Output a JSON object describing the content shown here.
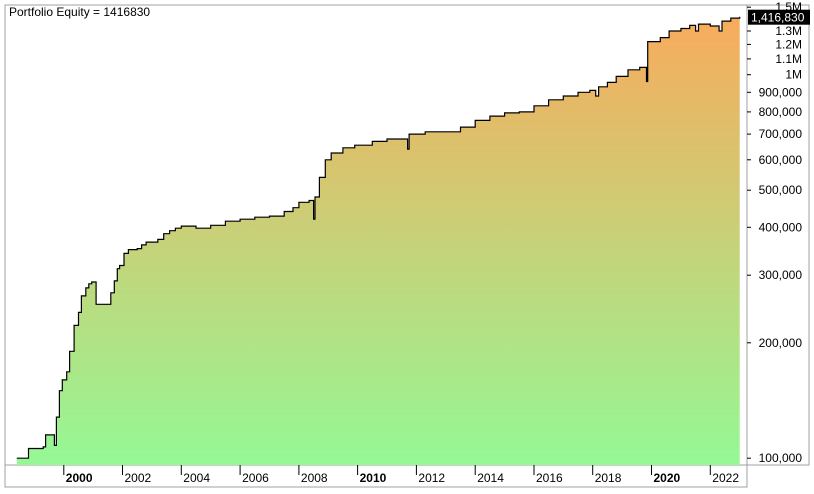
{
  "legend": {
    "text": "Portfolio Equity = 1416830"
  },
  "last_value_label": "1,416,830",
  "chart_data": {
    "type": "area",
    "title": "",
    "series": [
      {
        "name": "Portfolio Equity",
        "points": [
          [
            1998.4,
            100000
          ],
          [
            1998.8,
            106000
          ],
          [
            1999.3,
            107000
          ],
          [
            1999.38,
            115000
          ],
          [
            1999.6,
            115000
          ],
          [
            1999.68,
            108000
          ],
          [
            1999.75,
            128000
          ],
          [
            1999.85,
            150000
          ],
          [
            1999.95,
            160000
          ],
          [
            2000.1,
            168000
          ],
          [
            2000.2,
            190000
          ],
          [
            2000.35,
            222000
          ],
          [
            2000.5,
            240000
          ],
          [
            2000.6,
            265000
          ],
          [
            2000.75,
            278000
          ],
          [
            2000.85,
            285000
          ],
          [
            2000.95,
            288000
          ],
          [
            2001.1,
            252000
          ],
          [
            2001.5,
            252000
          ],
          [
            2001.6,
            270000
          ],
          [
            2001.72,
            290000
          ],
          [
            2001.82,
            312000
          ],
          [
            2001.9,
            318000
          ],
          [
            2002.05,
            342000
          ],
          [
            2002.2,
            350000
          ],
          [
            2002.5,
            352000
          ],
          [
            2002.65,
            360000
          ],
          [
            2002.8,
            366000
          ],
          [
            2003.2,
            372000
          ],
          [
            2003.4,
            385000
          ],
          [
            2003.6,
            392000
          ],
          [
            2003.8,
            398000
          ],
          [
            2004.0,
            403000
          ],
          [
            2004.5,
            398000
          ],
          [
            2005.0,
            405000
          ],
          [
            2005.5,
            415000
          ],
          [
            2006.0,
            420000
          ],
          [
            2006.5,
            425000
          ],
          [
            2007.0,
            428000
          ],
          [
            2007.5,
            440000
          ],
          [
            2007.8,
            450000
          ],
          [
            2008.0,
            465000
          ],
          [
            2008.35,
            470000
          ],
          [
            2008.5,
            420000
          ],
          [
            2008.55,
            480000
          ],
          [
            2008.7,
            540000
          ],
          [
            2008.9,
            600000
          ],
          [
            2009.1,
            625000
          ],
          [
            2009.5,
            645000
          ],
          [
            2009.9,
            655000
          ],
          [
            2010.5,
            670000
          ],
          [
            2011.0,
            680000
          ],
          [
            2011.5,
            680000
          ],
          [
            2011.7,
            640000
          ],
          [
            2011.75,
            700000
          ],
          [
            2012.3,
            710000
          ],
          [
            2012.8,
            710000
          ],
          [
            2013.5,
            730000
          ],
          [
            2014.0,
            760000
          ],
          [
            2014.5,
            780000
          ],
          [
            2015.0,
            795000
          ],
          [
            2015.5,
            800000
          ],
          [
            2016.0,
            830000
          ],
          [
            2016.5,
            860000
          ],
          [
            2017.0,
            880000
          ],
          [
            2017.5,
            900000
          ],
          [
            2017.9,
            910000
          ],
          [
            2018.1,
            880000
          ],
          [
            2018.2,
            930000
          ],
          [
            2018.5,
            955000
          ],
          [
            2018.8,
            990000
          ],
          [
            2019.2,
            1030000
          ],
          [
            2019.6,
            1045000
          ],
          [
            2019.8,
            1045000
          ],
          [
            2019.83,
            960000
          ],
          [
            2019.87,
            1220000
          ],
          [
            2020.3,
            1250000
          ],
          [
            2020.6,
            1300000
          ],
          [
            2021.0,
            1320000
          ],
          [
            2021.3,
            1345000
          ],
          [
            2021.5,
            1300000
          ],
          [
            2021.6,
            1355000
          ],
          [
            2022.0,
            1340000
          ],
          [
            2022.3,
            1300000
          ],
          [
            2022.4,
            1380000
          ],
          [
            2022.7,
            1405000
          ],
          [
            2023.0,
            1416830
          ]
        ]
      }
    ],
    "x_ticks": [
      {
        "label": "2000",
        "value": 2000,
        "bold": true
      },
      {
        "label": "2002",
        "value": 2002,
        "bold": false
      },
      {
        "label": "2004",
        "value": 2004,
        "bold": false
      },
      {
        "label": "2006",
        "value": 2006,
        "bold": false
      },
      {
        "label": "2008",
        "value": 2008,
        "bold": false
      },
      {
        "label": "2010",
        "value": 2010,
        "bold": true
      },
      {
        "label": "2012",
        "value": 2012,
        "bold": false
      },
      {
        "label": "2014",
        "value": 2014,
        "bold": false
      },
      {
        "label": "2016",
        "value": 2016,
        "bold": false
      },
      {
        "label": "2018",
        "value": 2018,
        "bold": false
      },
      {
        "label": "2020",
        "value": 2020,
        "bold": true
      },
      {
        "label": "2022",
        "value": 2022,
        "bold": false
      }
    ],
    "y_ticks": [
      {
        "label": "1.5M",
        "value": 1500000
      },
      {
        "label": "1.3M",
        "value": 1300000
      },
      {
        "label": "1.2M",
        "value": 1200000
      },
      {
        "label": "1.1M",
        "value": 1100000
      },
      {
        "label": "1M",
        "value": 1000000
      },
      {
        "label": "900,000",
        "value": 900000
      },
      {
        "label": "800,000",
        "value": 800000
      },
      {
        "label": "700,000",
        "value": 700000
      },
      {
        "label": "600,000",
        "value": 600000
      },
      {
        "label": "500,000",
        "value": 500000
      },
      {
        "label": "400,000",
        "value": 400000
      },
      {
        "label": "300,000",
        "value": 300000
      },
      {
        "label": "200,000",
        "value": 200000
      },
      {
        "label": "100,000",
        "value": 100000
      }
    ],
    "xlim": [
      1998.0,
      2023.25
    ],
    "ylim": [
      96000,
      1520000
    ],
    "yscale": "log",
    "grid": false,
    "legend_position": "top-left",
    "colors": {
      "line": "#000000",
      "fill_top": "#f8ab5c",
      "fill_bottom": "#95f895",
      "last_label_bg": "#000000"
    }
  }
}
